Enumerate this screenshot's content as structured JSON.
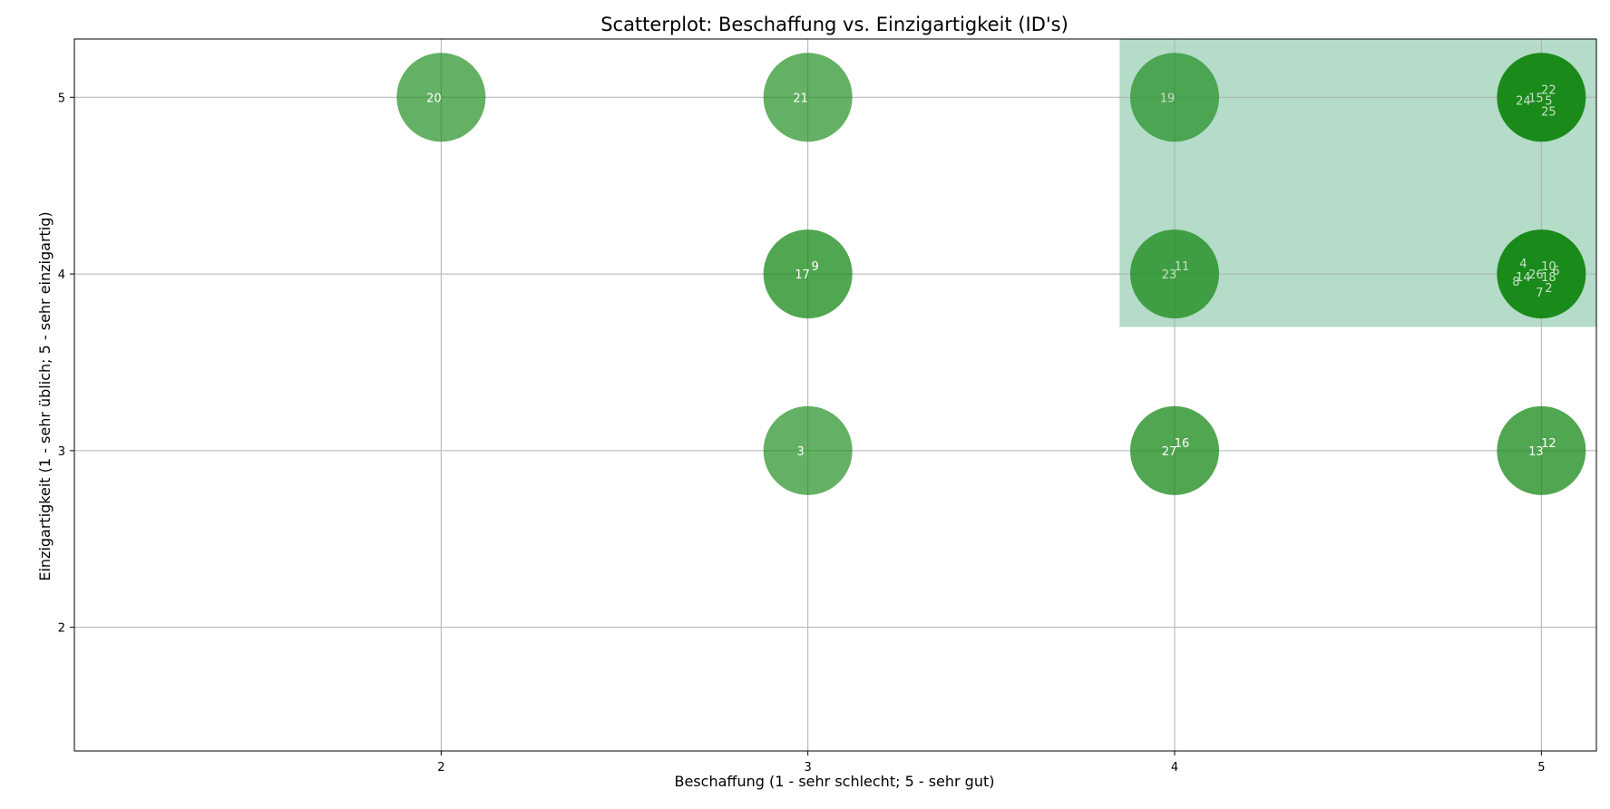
{
  "chart_data": {
    "type": "scatter",
    "title": "Scatterplot: Beschaffung vs. Einzigartigkeit (ID's)",
    "xlabel": "Beschaffung (1 - sehr schlecht; 5 - sehr gut)",
    "ylabel": "Einzigartigkeit (1 - sehr üblich; 5 - sehr einzigartig)",
    "xlim": [
      1.0,
      5.15
    ],
    "ylim": [
      1.3,
      5.33
    ],
    "xticks": [
      "2",
      "3",
      "4",
      "5"
    ],
    "yticks": [
      "2",
      "3",
      "4",
      "5"
    ],
    "grid": true,
    "highlight_region": {
      "x": [
        3.85,
        5.15
      ],
      "y": [
        3.7,
        5.33
      ],
      "color": "#b4dcc8"
    },
    "colors": {
      "bubble": "#1a8a1a",
      "label_light": "#ffffff",
      "label_muted": "#c8e0c8"
    },
    "points": [
      {
        "x": 2,
        "y": 5,
        "count": 1,
        "ids": [
          "20"
        ]
      },
      {
        "x": 3,
        "y": 5,
        "count": 1,
        "ids": [
          "21"
        ]
      },
      {
        "x": 4,
        "y": 5,
        "count": 1,
        "ids": [
          "19"
        ]
      },
      {
        "x": 5,
        "y": 5,
        "count": 5,
        "ids": [
          "15",
          "22",
          "24",
          "5",
          "25"
        ]
      },
      {
        "x": 3,
        "y": 4,
        "count": 2,
        "ids": [
          "17",
          "9"
        ]
      },
      {
        "x": 4,
        "y": 4,
        "count": 2,
        "ids": [
          "23",
          "11"
        ]
      },
      {
        "x": 5,
        "y": 4,
        "count": 9,
        "ids": [
          "26",
          "10",
          "14",
          "18",
          "2",
          "4",
          "6",
          "8",
          "7"
        ]
      },
      {
        "x": 3,
        "y": 3,
        "count": 1,
        "ids": [
          "3"
        ]
      },
      {
        "x": 4,
        "y": 3,
        "count": 2,
        "ids": [
          "27",
          "16"
        ]
      },
      {
        "x": 5,
        "y": 3,
        "count": 2,
        "ids": [
          "13",
          "12"
        ]
      }
    ]
  }
}
